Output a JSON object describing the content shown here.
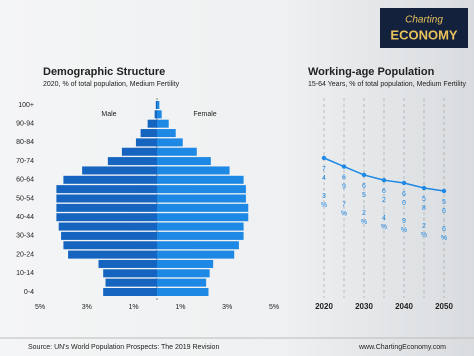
{
  "logo": {
    "line1": "Charting",
    "line2": "ECONOMY"
  },
  "footer": {
    "source": "Source: UN's World Population Prospects: The 2019 Revision",
    "website": "www.ChartingEconomy.com"
  },
  "chart_data": [
    {
      "type": "pyramid",
      "title": "Demographic Structure",
      "subtitle": "2020, % of total population, Medium Fertility",
      "categories": [
        "0-4",
        null,
        "10-14",
        null,
        "20-24",
        null,
        "30-34",
        null,
        "40-44",
        null,
        "50-54",
        null,
        "60-64",
        null,
        "70-74",
        null,
        "80-84",
        null,
        "90-94",
        null,
        "100+"
      ],
      "series": [
        {
          "name": "Male",
          "side": "left",
          "color": "#1565c0",
          "values": [
            2.3,
            2.2,
            2.3,
            2.5,
            3.8,
            4.0,
            4.1,
            4.2,
            4.3,
            4.3,
            4.3,
            4.3,
            4.0,
            3.2,
            2.1,
            1.5,
            0.9,
            0.7,
            0.4,
            0.1,
            0.05
          ]
        },
        {
          "name": "Female",
          "side": "right",
          "color": "#1e88e5",
          "values": [
            2.2,
            2.1,
            2.25,
            2.4,
            3.3,
            3.5,
            3.7,
            3.7,
            3.9,
            3.9,
            3.8,
            3.8,
            3.7,
            3.1,
            2.3,
            1.7,
            1.1,
            0.8,
            0.5,
            0.2,
            0.1
          ]
        }
      ],
      "xlim": [
        0,
        5
      ],
      "xticks": [
        {
          "value": 1,
          "label": "1%"
        },
        {
          "value": 3,
          "label": "3%"
        },
        {
          "value": 5,
          "label": "5%"
        }
      ]
    },
    {
      "type": "line",
      "title": "Working-age Population",
      "subtitle": "15-64 Years, % of total population, Medium Fertility",
      "x": [
        2020,
        2025,
        2030,
        2035,
        2040,
        2045,
        2050
      ],
      "xlim": [
        2018,
        2052
      ],
      "xticks": [
        2020,
        2030,
        2040,
        2050
      ],
      "series": [
        {
          "color": "#1e88e5",
          "values": [
            74.3,
            69.7,
            65.2,
            62.4,
            60.9,
            58.2,
            56.6
          ],
          "value_labels": [
            "74.3%",
            "69.7%",
            "65.2%",
            "62.4%",
            "60.9%",
            "58.2%",
            "56.6%"
          ]
        }
      ]
    }
  ]
}
